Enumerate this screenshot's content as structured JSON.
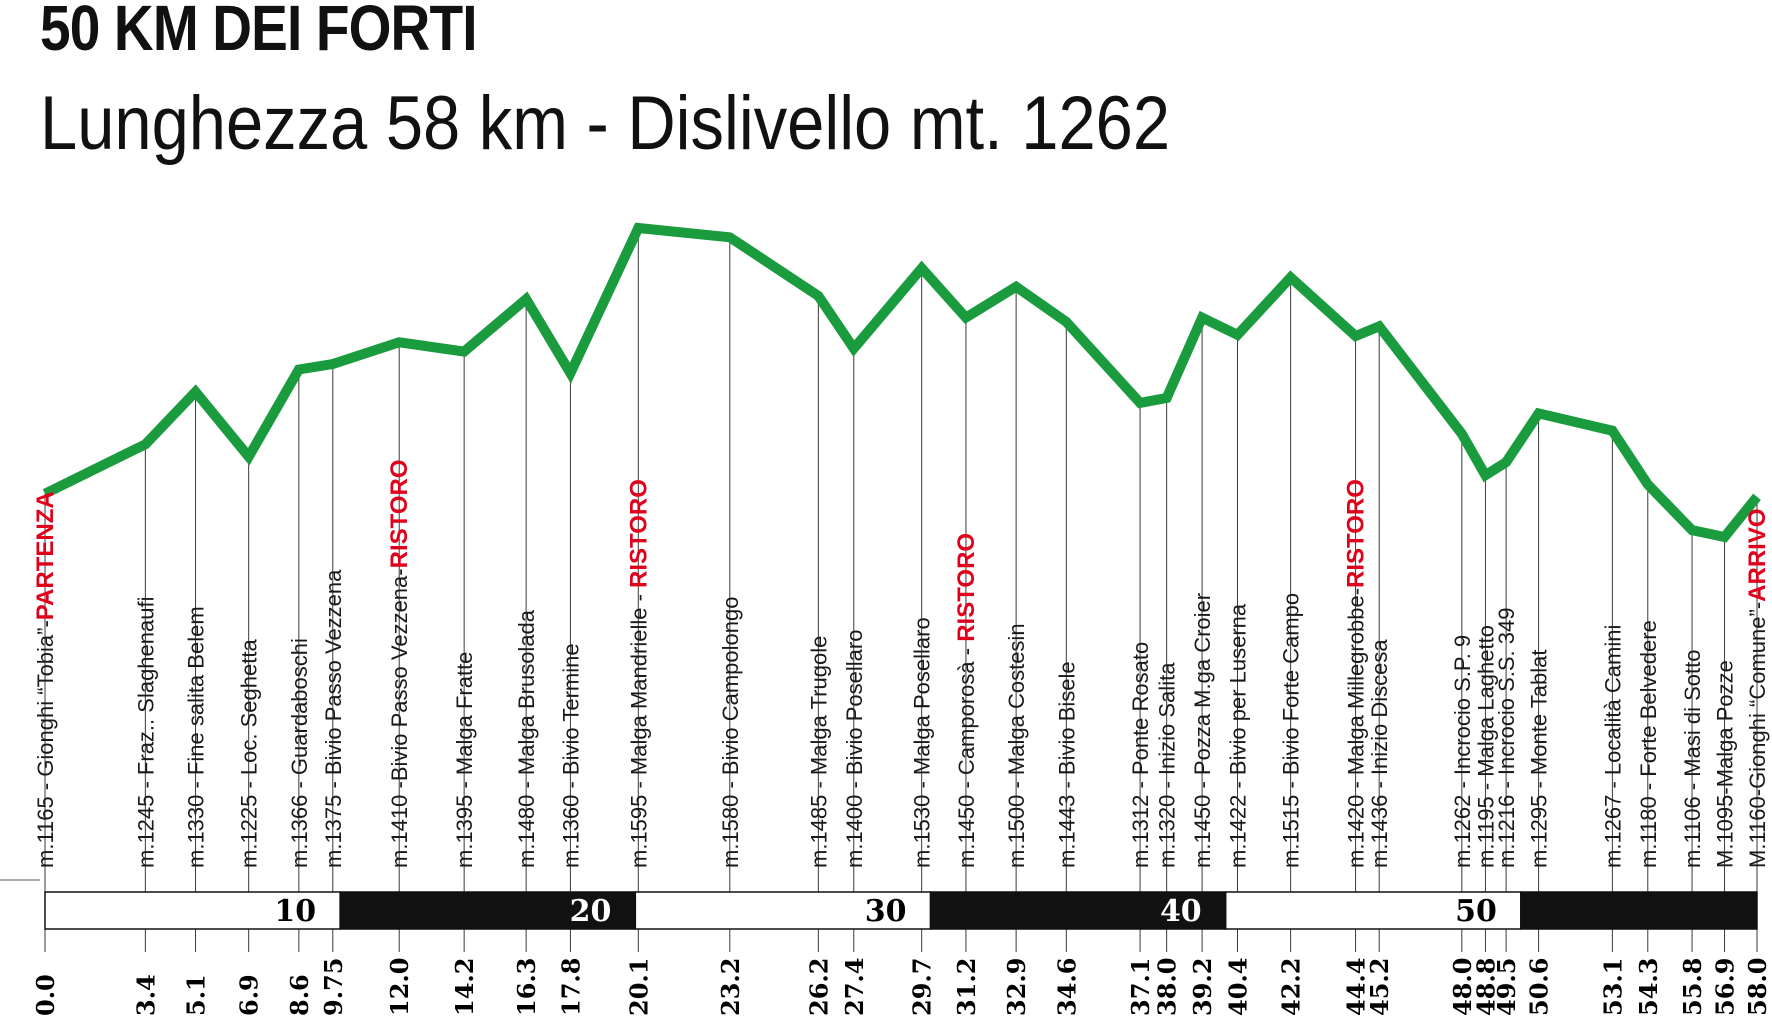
{
  "title": "50 KM DEI FORTI",
  "subtitle": "Lunghezza 58 km - Dislivello mt. 1262",
  "colors": {
    "profile": "#1a9b3e",
    "flag": "#e0001b",
    "bar_dark": "#111111",
    "bar_light": "#ffffff",
    "text": "#1a1a1a"
  },
  "chart_data": {
    "type": "line",
    "title": "50 KM DEI FORTI",
    "subtitle": "Lunghezza 58 km - Dislivello mt. 1262",
    "xlim": [
      0,
      58
    ],
    "ylim": [
      1095,
      1595
    ],
    "bar_segments": [
      {
        "from": 0,
        "to": 10,
        "label": "10",
        "fill": "light"
      },
      {
        "from": 10,
        "to": 20,
        "label": "20",
        "fill": "dark"
      },
      {
        "from": 20,
        "to": 30,
        "label": "30",
        "fill": "light"
      },
      {
        "from": 30,
        "to": 40,
        "label": "40",
        "fill": "dark"
      },
      {
        "from": 40,
        "to": 50,
        "label": "50",
        "fill": "light"
      },
      {
        "from": 50,
        "to": 58,
        "label": "",
        "fill": "dark"
      }
    ],
    "points": [
      {
        "km": "0.0",
        "x": 0.0,
        "alt": 1165,
        "label": "m.1165 - Gionghi “Tobia”-",
        "flag": "PARTENZA"
      },
      {
        "km": "3.4",
        "x": 3.4,
        "alt": 1245,
        "label": "m.1245 - Fraz.. Slaghenaufi",
        "flag": ""
      },
      {
        "km": "5.1",
        "x": 5.1,
        "alt": 1330,
        "label": "m.1330 - Fine salita Belem",
        "flag": ""
      },
      {
        "km": "6.9",
        "x": 6.9,
        "alt": 1225,
        "label": "m.1225 - Loc. Seghetta",
        "flag": ""
      },
      {
        "km": "8.6",
        "x": 8.6,
        "alt": 1366,
        "label": "m.1366 - Guardaboschi",
        "flag": ""
      },
      {
        "km": "9.75",
        "x": 9.75,
        "alt": 1375,
        "label": "m.1375 - Bivio Passo Vezzena",
        "flag": ""
      },
      {
        "km": "12.0",
        "x": 12.0,
        "alt": 1410,
        "label": "m.1410 -Bivio Passo Vezzena-",
        "flag": "RISTORO"
      },
      {
        "km": "14.2",
        "x": 14.2,
        "alt": 1395,
        "label": "m.1395 - Malga Fratte",
        "flag": ""
      },
      {
        "km": "16.3",
        "x": 16.3,
        "alt": 1480,
        "label": "m.1480 - Malga Brusolada",
        "flag": ""
      },
      {
        "km": "17.8",
        "x": 17.8,
        "alt": 1360,
        "label": "m.1360 - Bivio Termine",
        "flag": ""
      },
      {
        "km": "20.1",
        "x": 20.1,
        "alt": 1595,
        "label": "m.1595 - Malga Mandrielle - ",
        "flag": "RISTORO"
      },
      {
        "km": "23.2",
        "x": 23.2,
        "alt": 1580,
        "label": "m.1580 - Bivio Campolongo",
        "flag": ""
      },
      {
        "km": "26.2",
        "x": 26.2,
        "alt": 1485,
        "label": "m.1485 - Malga Trugole",
        "flag": ""
      },
      {
        "km": "27.4",
        "x": 27.4,
        "alt": 1400,
        "label": "m.1400 - Bivio Posellaro",
        "flag": ""
      },
      {
        "km": "29.7",
        "x": 29.7,
        "alt": 1530,
        "label": "m.1530 - Malga Posellaro",
        "flag": ""
      },
      {
        "km": "31.2",
        "x": 31.2,
        "alt": 1450,
        "label": "m.1450 - Camporosà - ",
        "flag": "RISTORO"
      },
      {
        "km": "32.9",
        "x": 32.9,
        "alt": 1500,
        "label": "m.1500 - Malga Costesin",
        "flag": ""
      },
      {
        "km": "34.6",
        "x": 34.6,
        "alt": 1443,
        "label": "m.1443 - Bivio Bisele",
        "flag": ""
      },
      {
        "km": "37.1",
        "x": 37.1,
        "alt": 1312,
        "label": "m.1312 - Ponte Rosato",
        "flag": ""
      },
      {
        "km": "38.0",
        "x": 38.0,
        "alt": 1320,
        "label": "m.1320 - Inizio Salita",
        "flag": ""
      },
      {
        "km": "39.2",
        "x": 39.2,
        "alt": 1450,
        "label": "m.1450 - Pozza M.ga Croier",
        "flag": ""
      },
      {
        "km": "40.4",
        "x": 40.4,
        "alt": 1422,
        "label": "m.1422 - Bivio per Luserna",
        "flag": ""
      },
      {
        "km": "42.2",
        "x": 42.2,
        "alt": 1515,
        "label": "m.1515 - Bivio Forte Campo",
        "flag": ""
      },
      {
        "km": "44.4",
        "x": 44.4,
        "alt": 1420,
        "label": "m.1420 - Malga Millegrobbe-",
        "flag": "RISTORO"
      },
      {
        "km": "45.2",
        "x": 45.2,
        "alt": 1436,
        "label": "m.1436 - Inizio Discesa",
        "flag": ""
      },
      {
        "km": "48.0",
        "x": 48.0,
        "alt": 1262,
        "label": "m.1262 - Incrocio S.P. 9",
        "flag": ""
      },
      {
        "km": "48.8",
        "x": 48.8,
        "alt": 1195,
        "label": "m.1195 - Malga Laghetto",
        "flag": ""
      },
      {
        "km": "49.5",
        "x": 49.5,
        "alt": 1216,
        "label": "m.1216 - Incrocio S.S. 349",
        "flag": ""
      },
      {
        "km": "50.6",
        "x": 50.6,
        "alt": 1295,
        "label": "m.1295 - Monte Tablat",
        "flag": ""
      },
      {
        "km": "53.1",
        "x": 53.1,
        "alt": 1267,
        "label": "m.1267 - Località Camini",
        "flag": ""
      },
      {
        "km": "54.3",
        "x": 54.3,
        "alt": 1180,
        "label": "m.1180 - Forte Belvedere",
        "flag": ""
      },
      {
        "km": "55.8",
        "x": 55.8,
        "alt": 1106,
        "label": "m.1106 - Masi di Sotto",
        "flag": ""
      },
      {
        "km": "56.9",
        "x": 56.9,
        "alt": 1095,
        "label": "M.1095-Malga Pozze",
        "flag": ""
      },
      {
        "km": "58.0",
        "x": 58.0,
        "alt": 1160,
        "label": "M.1160-Gionghi “Comune”-",
        "flag": "ARRIVO"
      }
    ]
  }
}
